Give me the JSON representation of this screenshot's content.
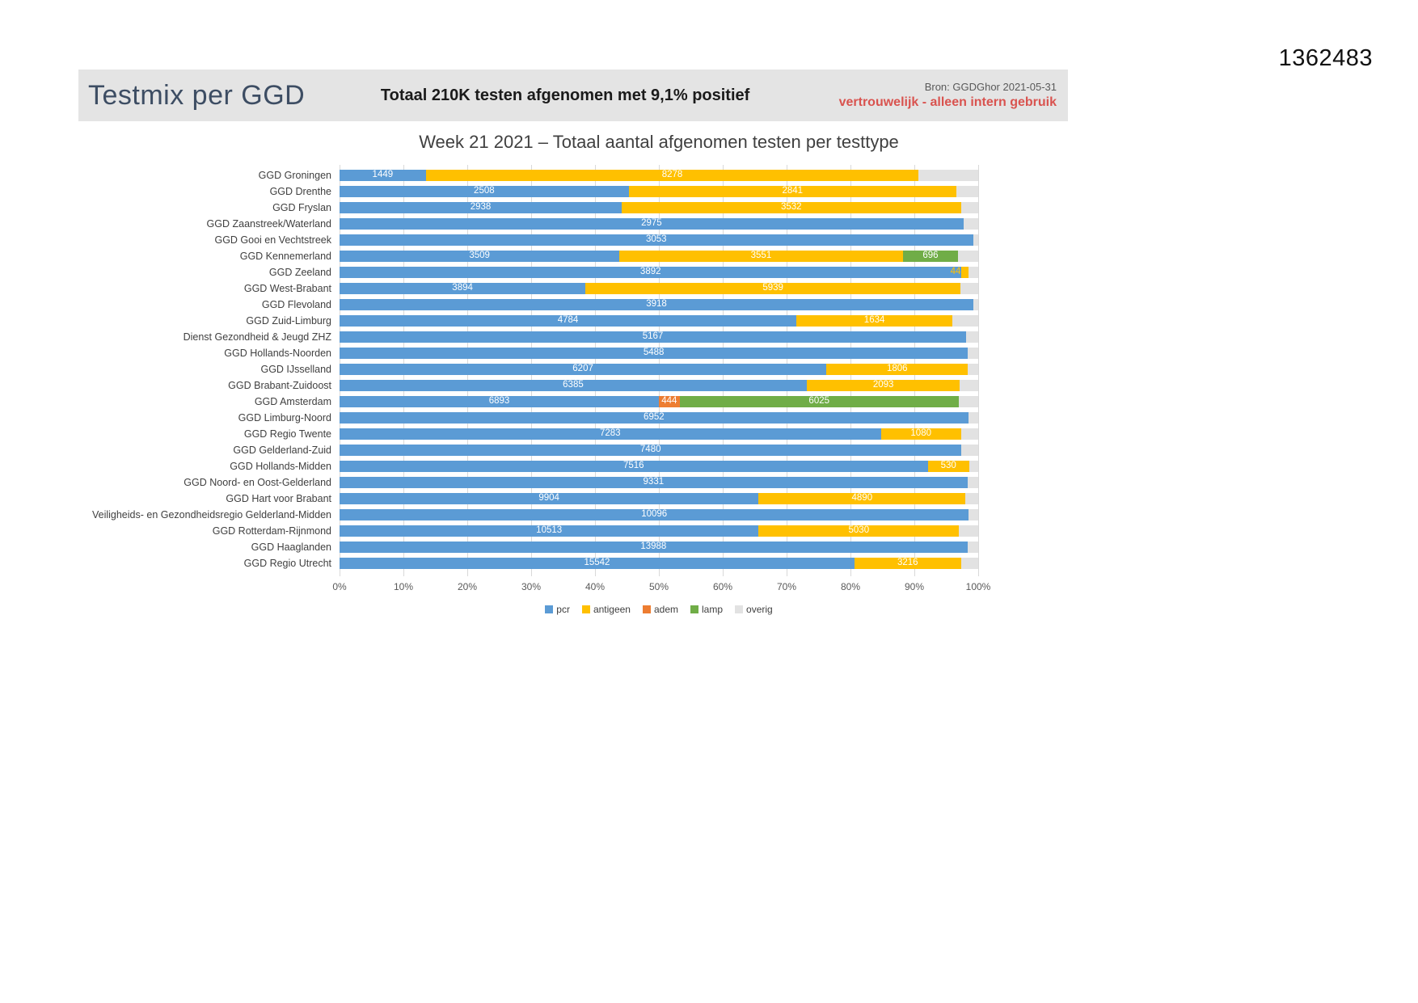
{
  "page": {
    "number": "1362483"
  },
  "header": {
    "title": "Testmix per GGD",
    "subtitle": "Totaal 210K testen afgenomen met 9,1% positief",
    "source": "Bron: GGDGhor 2021-05-31",
    "confidential": "vertrouwelijk - alleen intern gebruik"
  },
  "chart_data": {
    "type": "bar",
    "orientation": "horizontal",
    "stacking": "percent",
    "title": "Week 21 2021 – Totaal aantal afgenomen testen per testtype",
    "xlabel": "",
    "ylabel": "",
    "xlim": [
      0,
      100
    ],
    "grid": true,
    "legend_position": "bottom",
    "x_ticks": [
      "0%",
      "10%",
      "20%",
      "30%",
      "40%",
      "50%",
      "60%",
      "70%",
      "80%",
      "90%",
      "100%"
    ],
    "colors": {
      "pcr": "#5B9BD5",
      "antigeen": "#FFC000",
      "adem": "#ED7D31",
      "lamp": "#70AD47",
      "overig": "#E2E2E2"
    },
    "legend": [
      {
        "type": "pcr",
        "label": "pcr"
      },
      {
        "type": "antigeen",
        "label": "antigeen"
      },
      {
        "type": "adem",
        "label": "adem"
      },
      {
        "type": "lamp",
        "label": "lamp"
      },
      {
        "type": "overig",
        "label": "overig"
      }
    ],
    "note": "overig segment values are unlabeled in the chart and estimated from bar widths",
    "regions": [
      {
        "name": "GGD Groningen",
        "segments": [
          {
            "type": "pcr",
            "value": 1449,
            "label": "1449"
          },
          {
            "type": "antigeen",
            "value": 8278,
            "label": "8278"
          },
          {
            "type": "overig",
            "value": 1000,
            "label": "",
            "estimated": true
          }
        ]
      },
      {
        "name": "GGD Drenthe",
        "segments": [
          {
            "type": "pcr",
            "value": 2508,
            "label": "2508"
          },
          {
            "type": "antigeen",
            "value": 2841,
            "label": "2841"
          },
          {
            "type": "overig",
            "value": 190,
            "label": "",
            "estimated": true
          }
        ]
      },
      {
        "name": "GGD Fryslan",
        "segments": [
          {
            "type": "pcr",
            "value": 2938,
            "label": "2938"
          },
          {
            "type": "antigeen",
            "value": 3532,
            "label": "3532"
          },
          {
            "type": "overig",
            "value": 180,
            "label": "",
            "estimated": true
          }
        ]
      },
      {
        "name": "GGD Zaanstreek/Waterland",
        "segments": [
          {
            "type": "pcr",
            "value": 2975,
            "label": "2975"
          },
          {
            "type": "overig",
            "value": 70,
            "label": "",
            "estimated": true
          }
        ]
      },
      {
        "name": "GGD Gooi en Vechtstreek",
        "segments": [
          {
            "type": "pcr",
            "value": 3053,
            "label": "3053"
          },
          {
            "type": "overig",
            "value": 25,
            "label": "",
            "estimated": true
          }
        ]
      },
      {
        "name": "GGD Kennemerland",
        "segments": [
          {
            "type": "pcr",
            "value": 3509,
            "label": "3509"
          },
          {
            "type": "antigeen",
            "value": 3551,
            "label": "3551"
          },
          {
            "type": "lamp",
            "value": 696,
            "label": "696"
          },
          {
            "type": "overig",
            "value": 250,
            "label": "",
            "estimated": true
          }
        ]
      },
      {
        "name": "GGD Zeeland",
        "segments": [
          {
            "type": "pcr",
            "value": 3892,
            "label": "3892"
          },
          {
            "type": "antigeen",
            "value": 44,
            "label": "44",
            "label_pos": "out-left"
          },
          {
            "type": "overig",
            "value": 60,
            "label": "",
            "estimated": true
          }
        ]
      },
      {
        "name": "GGD West-Brabant",
        "segments": [
          {
            "type": "pcr",
            "value": 3894,
            "label": "3894"
          },
          {
            "type": "antigeen",
            "value": 5939,
            "label": "5939"
          },
          {
            "type": "overig",
            "value": 280,
            "label": "",
            "estimated": true
          }
        ]
      },
      {
        "name": "GGD Flevoland",
        "segments": [
          {
            "type": "pcr",
            "value": 3918,
            "label": "3918"
          },
          {
            "type": "overig",
            "value": 30,
            "label": "",
            "estimated": true
          }
        ]
      },
      {
        "name": "GGD Zuid-Limburg",
        "segments": [
          {
            "type": "pcr",
            "value": 4784,
            "label": "4784"
          },
          {
            "type": "antigeen",
            "value": 1634,
            "label": "1634"
          },
          {
            "type": "overig",
            "value": 270,
            "label": "",
            "estimated": true
          }
        ]
      },
      {
        "name": "Dienst Gezondheid & Jeugd ZHZ",
        "segments": [
          {
            "type": "pcr",
            "value": 5167,
            "label": "5167"
          },
          {
            "type": "overig",
            "value": 100,
            "label": "",
            "estimated": true
          }
        ]
      },
      {
        "name": "GGD Hollands-Noorden",
        "segments": [
          {
            "type": "pcr",
            "value": 5488,
            "label": "5488"
          },
          {
            "type": "overig",
            "value": 90,
            "label": "",
            "estimated": true
          }
        ]
      },
      {
        "name": "GGD IJsselland",
        "segments": [
          {
            "type": "pcr",
            "value": 6207,
            "label": "6207"
          },
          {
            "type": "antigeen",
            "value": 1806,
            "label": "1806"
          },
          {
            "type": "overig",
            "value": 130,
            "label": "",
            "estimated": true
          }
        ]
      },
      {
        "name": "GGD Brabant-Zuidoost",
        "segments": [
          {
            "type": "pcr",
            "value": 6385,
            "label": "6385"
          },
          {
            "type": "antigeen",
            "value": 2093,
            "label": "2093"
          },
          {
            "type": "overig",
            "value": 250,
            "label": "",
            "estimated": true
          }
        ]
      },
      {
        "name": "GGD Amsterdam",
        "segments": [
          {
            "type": "pcr",
            "value": 6893,
            "label": "6893"
          },
          {
            "type": "adem",
            "value": 444,
            "label": "444"
          },
          {
            "type": "lamp",
            "value": 6025,
            "label": "6025"
          },
          {
            "type": "overig",
            "value": 420,
            "label": "",
            "estimated": true
          }
        ]
      },
      {
        "name": "GGD Limburg-Noord",
        "segments": [
          {
            "type": "pcr",
            "value": 6952,
            "label": "6952"
          },
          {
            "type": "overig",
            "value": 110,
            "label": "",
            "estimated": true
          }
        ]
      },
      {
        "name": "GGD Regio Twente",
        "segments": [
          {
            "type": "pcr",
            "value": 7283,
            "label": "7283"
          },
          {
            "type": "antigeen",
            "value": 1080,
            "label": "1080"
          },
          {
            "type": "overig",
            "value": 230,
            "label": "",
            "estimated": true
          }
        ]
      },
      {
        "name": "GGD Gelderland-Zuid",
        "segments": [
          {
            "type": "pcr",
            "value": 7480,
            "label": "7480"
          },
          {
            "type": "overig",
            "value": 200,
            "label": "",
            "estimated": true
          }
        ]
      },
      {
        "name": "GGD Hollands-Midden",
        "segments": [
          {
            "type": "pcr",
            "value": 7516,
            "label": "7516"
          },
          {
            "type": "antigeen",
            "value": 530,
            "label": "530"
          },
          {
            "type": "overig",
            "value": 115,
            "label": "",
            "estimated": true
          }
        ]
      },
      {
        "name": "GGD Noord- en Oost-Gelderland",
        "segments": [
          {
            "type": "pcr",
            "value": 9331,
            "label": "9331"
          },
          {
            "type": "overig",
            "value": 160,
            "label": "",
            "estimated": true
          }
        ]
      },
      {
        "name": "GGD Hart voor Brabant",
        "segments": [
          {
            "type": "pcr",
            "value": 9904,
            "label": "9904"
          },
          {
            "type": "antigeen",
            "value": 4890,
            "label": "4890"
          },
          {
            "type": "overig",
            "value": 300,
            "label": "",
            "estimated": true
          }
        ]
      },
      {
        "name": "Veiligheids- en Gezondheidsregio Gelderland-Midden",
        "segments": [
          {
            "type": "pcr",
            "value": 10096,
            "label": "10096"
          },
          {
            "type": "overig",
            "value": 150,
            "label": "",
            "estimated": true
          }
        ]
      },
      {
        "name": "GGD Rotterdam-Rijnmond",
        "segments": [
          {
            "type": "pcr",
            "value": 10513,
            "label": "10513"
          },
          {
            "type": "antigeen",
            "value": 5030,
            "label": "5030"
          },
          {
            "type": "overig",
            "value": 480,
            "label": "",
            "estimated": true
          }
        ]
      },
      {
        "name": "GGD Haaglanden",
        "segments": [
          {
            "type": "pcr",
            "value": 13988,
            "label": "13988"
          },
          {
            "type": "overig",
            "value": 240,
            "label": "",
            "estimated": true
          }
        ]
      },
      {
        "name": "GGD Regio Utrecht",
        "segments": [
          {
            "type": "pcr",
            "value": 15542,
            "label": "15542"
          },
          {
            "type": "antigeen",
            "value": 3216,
            "label": "3216"
          },
          {
            "type": "overig",
            "value": 520,
            "label": "",
            "estimated": true
          }
        ]
      }
    ]
  }
}
